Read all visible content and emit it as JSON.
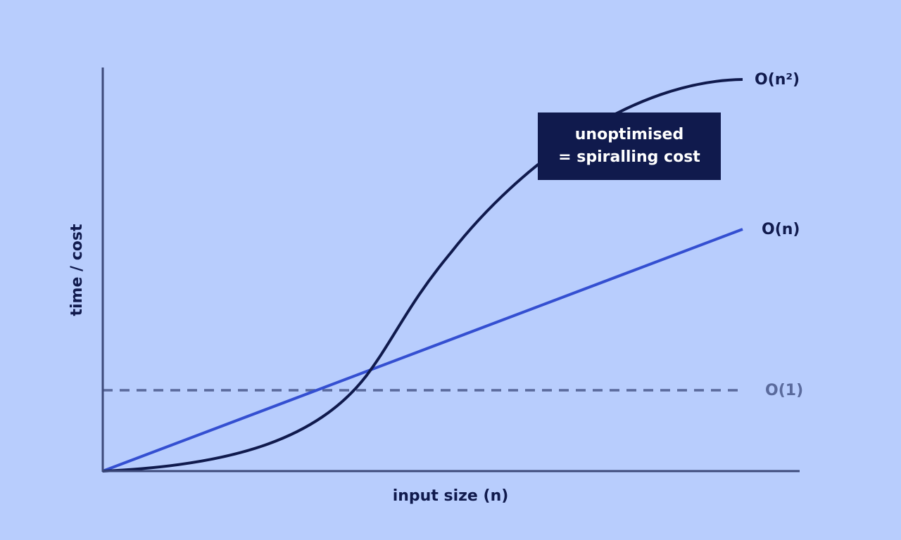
{
  "axes": {
    "y_label": "time / cost",
    "x_label": "input size (n)"
  },
  "curves": [
    {
      "label": "O(n²)"
    },
    {
      "label": "O(n)"
    },
    {
      "label": "O(1)"
    }
  ],
  "callout": {
    "lines": [
      "unoptimised",
      "= spiralling cost"
    ]
  }
}
